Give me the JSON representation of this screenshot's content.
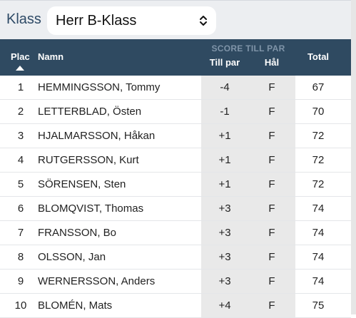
{
  "filter": {
    "label": "Klass",
    "selected": "Herr B-Klass"
  },
  "table": {
    "headers": {
      "place": "Plac",
      "name": "Namn",
      "score_group": "SCORE TILL PAR",
      "to_par": "Till par",
      "holes": "Hål",
      "total": "Total"
    },
    "rows": [
      {
        "place": "1",
        "name": "HEMMINGSSON, Tommy",
        "to_par": "-4",
        "holes": "F",
        "total": "67"
      },
      {
        "place": "2",
        "name": "LETTERBLAD, Östen",
        "to_par": "-1",
        "holes": "F",
        "total": "70"
      },
      {
        "place": "3",
        "name": "HJALMARSSON, Håkan",
        "to_par": "+1",
        "holes": "F",
        "total": "72"
      },
      {
        "place": "4",
        "name": "RUTGERSSON, Kurt",
        "to_par": "+1",
        "holes": "F",
        "total": "72"
      },
      {
        "place": "5",
        "name": "SÖRENSEN, Sten",
        "to_par": "+1",
        "holes": "F",
        "total": "72"
      },
      {
        "place": "6",
        "name": "BLOMQVIST, Thomas",
        "to_par": "+3",
        "holes": "F",
        "total": "74"
      },
      {
        "place": "7",
        "name": "FRANSSON, Bo",
        "to_par": "+3",
        "holes": "F",
        "total": "74"
      },
      {
        "place": "8",
        "name": "OLSSON, Jan",
        "to_par": "+3",
        "holes": "F",
        "total": "74"
      },
      {
        "place": "9",
        "name": "WERNERSSON, Anders",
        "to_par": "+3",
        "holes": "F",
        "total": "74"
      },
      {
        "place": "10",
        "name": "BLOMÉN, Mats",
        "to_par": "+4",
        "holes": "F",
        "total": "75"
      }
    ]
  },
  "icons": {
    "select": "chevron-updown-icon",
    "sort": "sort-asc-icon"
  },
  "colors": {
    "header_bg": "#2f4a61",
    "score_col_bg": "#e9e9e9",
    "label": "#2e4a66"
  }
}
